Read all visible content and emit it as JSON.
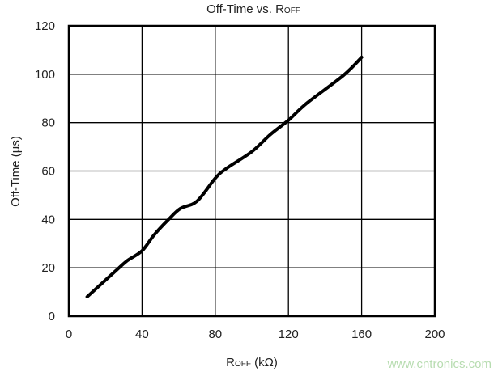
{
  "chart_data": {
    "type": "line",
    "title": "Off-Time vs. R",
    "title_subscript": "OFF",
    "xlabel": "R",
    "xlabel_subscript": "OFF",
    "xlabel_unit": " (kΩ)",
    "ylabel": "Off-Time (µs)",
    "xlim": [
      0,
      200
    ],
    "ylim": [
      0,
      120
    ],
    "xticks": [
      0,
      40,
      80,
      120,
      160,
      200
    ],
    "yticks": [
      0,
      20,
      40,
      60,
      80,
      100,
      120
    ],
    "grid": true,
    "series": [
      {
        "color": "#000000",
        "x": [
          10,
          26,
          32,
          40,
          46.5,
          54.5,
          61,
          70,
          80,
          86,
          100,
          110,
          120,
          130,
          150,
          160
        ],
        "y": [
          8,
          19,
          23,
          27,
          33.5,
          40,
          44.5,
          47.5,
          57,
          61,
          68,
          75,
          81,
          88,
          99.5,
          107
        ]
      }
    ]
  },
  "watermark": "www.cntronics.com",
  "colors": {
    "watermark": "#b7dcb0"
  }
}
